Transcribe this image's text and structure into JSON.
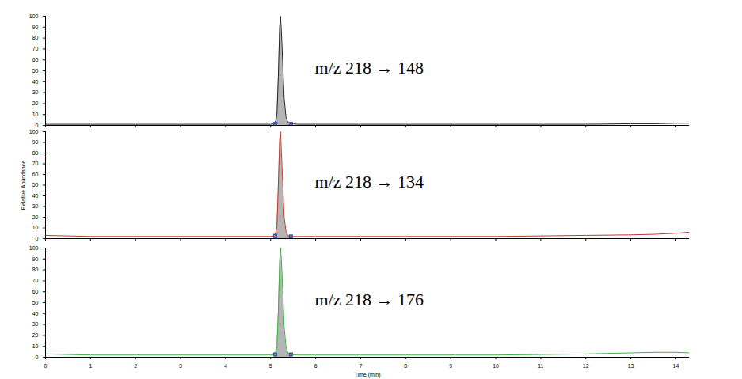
{
  "chart_data": [
    {
      "type": "area",
      "annotation": "m/z 218 → 148",
      "color": "#222222",
      "x": [
        0,
        1,
        2,
        3,
        4,
        5,
        5.1,
        5.14,
        5.17,
        5.2,
        5.22,
        5.24,
        5.27,
        5.3,
        5.34,
        5.38,
        5.45,
        5.6,
        6,
        7,
        8,
        9,
        10,
        11,
        12,
        13,
        13.5,
        14,
        14.3
      ],
      "values": [
        1,
        1,
        1,
        1,
        1,
        1,
        1.5,
        10,
        45,
        90,
        100,
        85,
        55,
        25,
        8,
        3,
        1.5,
        1,
        1,
        1,
        1,
        1,
        1,
        1,
        1,
        1.5,
        1.5,
        2,
        2
      ],
      "peak_range": [
        5.1,
        5.45
      ],
      "xlim": [
        0,
        14.3
      ],
      "ylim": [
        0,
        100
      ],
      "xticks": [
        0,
        1,
        2,
        3,
        4,
        5,
        6,
        7,
        8,
        9,
        10,
        11,
        12,
        13,
        14
      ],
      "yticks": [
        0,
        10,
        20,
        30,
        40,
        50,
        60,
        70,
        80,
        90,
        100
      ],
      "tick_labels": "y"
    },
    {
      "type": "area",
      "annotation": "m/z 218 → 134",
      "color": "#c0392b",
      "ylabel": "Relative Abundance",
      "x": [
        0,
        1,
        2,
        3,
        4,
        5,
        5.1,
        5.14,
        5.17,
        5.2,
        5.22,
        5.24,
        5.27,
        5.3,
        5.34,
        5.38,
        5.45,
        5.6,
        6,
        7,
        8,
        9,
        10,
        11,
        12,
        13,
        13.5,
        14,
        14.3
      ],
      "values": [
        3,
        2,
        2,
        2,
        2,
        2,
        2.5,
        12,
        50,
        92,
        100,
        80,
        50,
        20,
        7,
        3,
        2,
        2,
        2,
        2,
        2,
        2,
        2,
        2.5,
        3,
        3.5,
        4,
        5,
        6
      ],
      "peak_range": [
        5.1,
        5.45
      ],
      "xlim": [
        0,
        14.3
      ],
      "ylim": [
        0,
        100
      ],
      "xticks": [
        0,
        1,
        2,
        3,
        4,
        5,
        6,
        7,
        8,
        9,
        10,
        11,
        12,
        13,
        14
      ],
      "yticks": [
        0,
        10,
        20,
        30,
        40,
        50,
        60,
        70,
        80,
        90,
        100
      ],
      "tick_labels": "y"
    },
    {
      "type": "area",
      "annotation": "m/z 218 → 176",
      "color": "#3cb043",
      "xlabel": "Time (min)",
      "x": [
        0,
        1,
        2,
        3,
        4,
        5,
        5.1,
        5.14,
        5.17,
        5.2,
        5.22,
        5.24,
        5.27,
        5.3,
        5.34,
        5.38,
        5.45,
        5.6,
        6,
        7,
        8,
        9,
        10,
        11,
        12,
        13,
        13.5,
        14,
        14.3
      ],
      "values": [
        3,
        2,
        2,
        2,
        2,
        2,
        2.5,
        10,
        42,
        88,
        100,
        88,
        60,
        28,
        10,
        4,
        2.5,
        2,
        2,
        2,
        2,
        2,
        2,
        2.5,
        3,
        4,
        4.5,
        4.5,
        4
      ],
      "peak_range": [
        5.1,
        5.45
      ],
      "xlim": [
        0,
        14.3
      ],
      "ylim": [
        0,
        100
      ],
      "xticks": [
        0,
        1,
        2,
        3,
        4,
        5,
        6,
        7,
        8,
        9,
        10,
        11,
        12,
        13,
        14
      ],
      "yticks": [
        0,
        10,
        20,
        30,
        40,
        50,
        60,
        70,
        80,
        90,
        100
      ]
    }
  ]
}
